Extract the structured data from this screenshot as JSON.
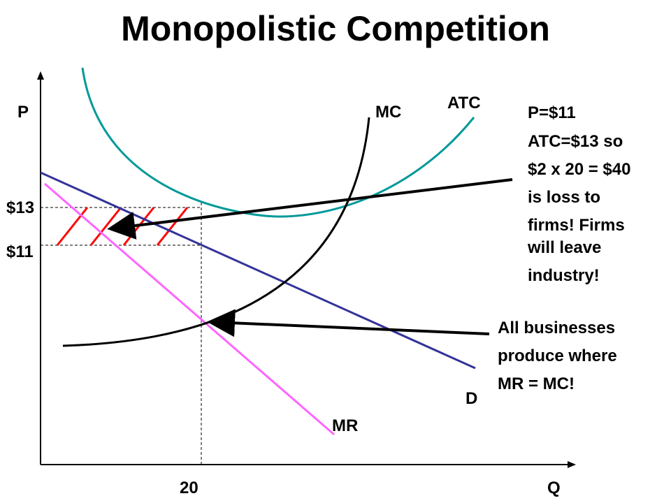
{
  "title": "Monopolistic Competition",
  "axes": {
    "y_label": "P",
    "x_label": "Q"
  },
  "curve_labels": {
    "mc": "MC",
    "atc": "ATC",
    "demand": "D",
    "mr": "MR"
  },
  "ticks": {
    "price_high": "$13",
    "price_low": "$11",
    "quantity": "20"
  },
  "annotation_loss": [
    "P=$11",
    "ATC=$13 so",
    "$2 x 20 = $40",
    "is loss to",
    "firms!  Firms",
    "will leave",
    "industry!"
  ],
  "annotation_rule": [
    "All businesses",
    "produce where",
    "MR = MC!"
  ],
  "colors": {
    "demand": "#333399",
    "mr": "#ff66ff",
    "atc": "#009999",
    "mc": "#000000",
    "loss_hatch": "#ff0000",
    "axes": "#000000"
  }
}
